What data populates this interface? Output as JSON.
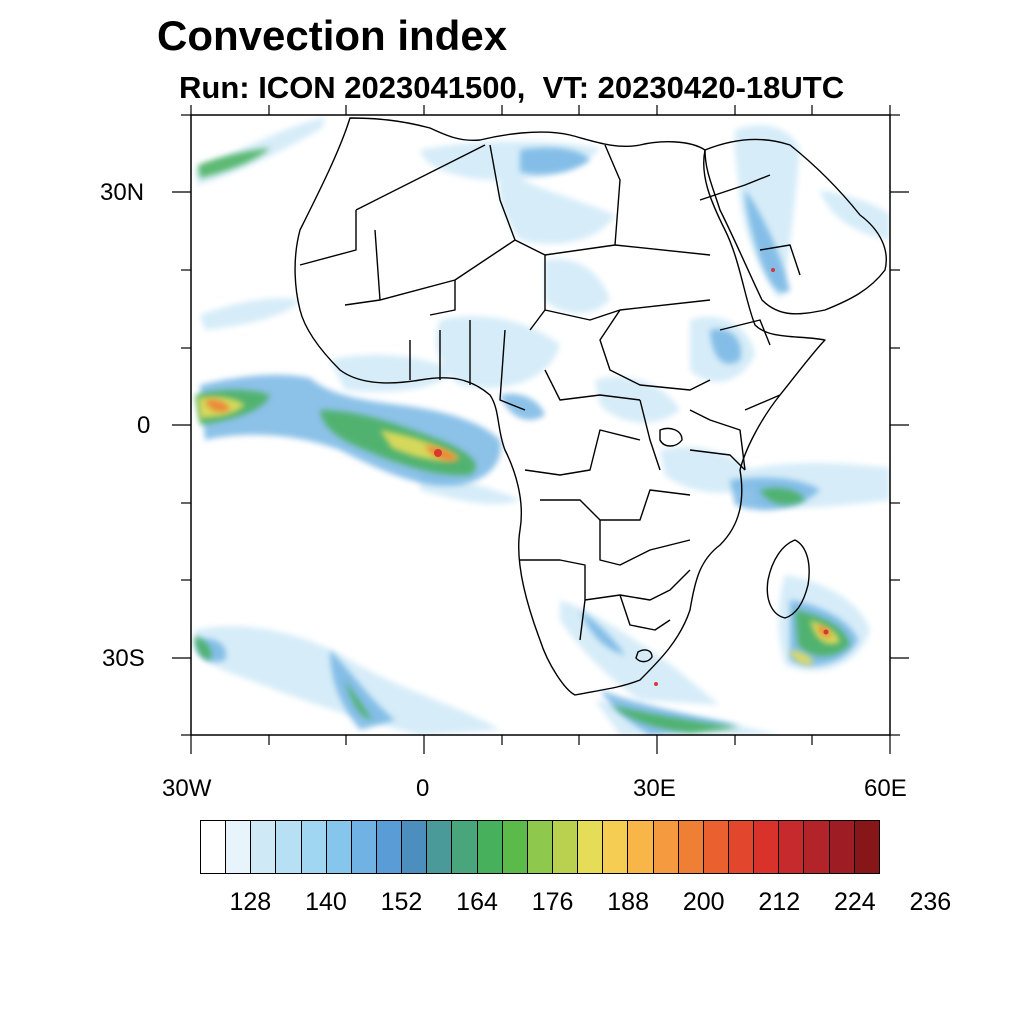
{
  "title": "Convection index",
  "subtitle": {
    "run": "Run: ICON 2023041500,",
    "vt": "VT: 20230420-18UTC"
  },
  "axes": {
    "x_ticks": [
      "30W",
      "0",
      "30E",
      "60E"
    ],
    "y_ticks": [
      "30N",
      "0",
      "30S"
    ]
  },
  "colorbar": {
    "colors": [
      "#ffffff",
      "#e8f4fb",
      "#cfe9f7",
      "#b8e0f5",
      "#a0d6f2",
      "#86c6ec",
      "#6fb2e3",
      "#5a9dd6",
      "#4c8fbe",
      "#4a9a9a",
      "#48a57c",
      "#46b05c",
      "#5cba4a",
      "#8ec84c",
      "#b9d14e",
      "#e5dd58",
      "#f5cd52",
      "#f8b548",
      "#f59a3f",
      "#f07f36",
      "#ea612f",
      "#e2462c",
      "#d8322b",
      "#c62a2c",
      "#b2232a",
      "#9e1c24",
      "#861618"
    ],
    "labels": [
      "128",
      "140",
      "152",
      "164",
      "176",
      "188",
      "200",
      "212",
      "224",
      "236"
    ]
  },
  "legend_colors": {
    "low": "#a0d6f2",
    "mid": "#46b05c",
    "high": "#d8322b"
  }
}
